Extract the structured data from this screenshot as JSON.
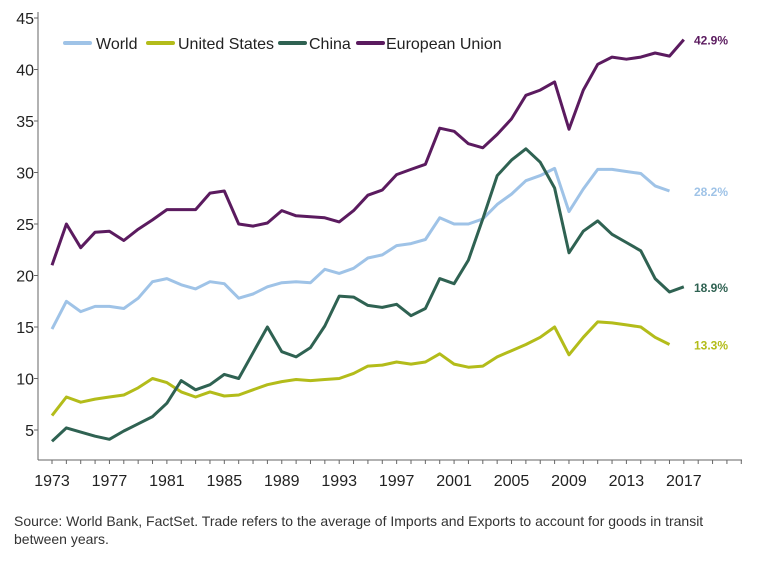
{
  "chart_data": {
    "type": "line",
    "title": "",
    "xlabel": "",
    "ylabel": "",
    "xlim": [
      1973,
      2021
    ],
    "ylim": [
      2,
      45
    ],
    "x_ticks": [
      1973,
      1977,
      1981,
      1985,
      1989,
      1993,
      1997,
      2001,
      2005,
      2009,
      2013,
      2017
    ],
    "y_ticks": [
      5,
      10,
      15,
      20,
      25,
      30,
      35,
      40,
      45
    ],
    "grid": false,
    "legend_placement": "top-left",
    "series": [
      {
        "name": "World",
        "color": "#9fc3e7",
        "end_label": "28.2%",
        "start_year": 1973,
        "values": [
          14.8,
          17.5,
          16.5,
          17,
          17,
          16.8,
          17.8,
          19.4,
          19.7,
          19.1,
          18.7,
          19.4,
          19.2,
          17.8,
          18.2,
          18.9,
          19.3,
          19.4,
          19.3,
          20.6,
          20.2,
          20.7,
          21.7,
          22,
          22.9,
          23.1,
          23.5,
          25.6,
          25,
          25,
          25.5,
          26.9,
          27.9,
          29.2,
          29.7,
          30.4,
          26.2,
          28.4,
          30.3,
          30.3,
          30.1,
          29.9,
          28.7,
          28.2
        ]
      },
      {
        "name": "United States",
        "color": "#b3bc1a",
        "end_label": "13.3%",
        "start_year": 1973,
        "values": [
          6.4,
          8.2,
          7.7,
          8,
          8.2,
          8.4,
          9.1,
          10,
          9.6,
          8.7,
          8.2,
          8.7,
          8.3,
          8.4,
          8.9,
          9.4,
          9.7,
          9.9,
          9.8,
          9.9,
          10,
          10.5,
          11.2,
          11.3,
          11.6,
          11.4,
          11.6,
          12.4,
          11.4,
          11.1,
          11.2,
          12.1,
          12.7,
          13.3,
          14,
          15,
          12.3,
          14,
          15.5,
          15.4,
          15.2,
          15,
          14,
          13.3
        ]
      },
      {
        "name": "China",
        "color": "#2f6252",
        "end_label": "18.9%",
        "start_year": 1973,
        "values": [
          3.9,
          5.2,
          4.8,
          4.4,
          4.1,
          4.9,
          5.6,
          6.3,
          7.6,
          9.8,
          8.9,
          9.4,
          10.4,
          10,
          12.5,
          15,
          12.6,
          12.1,
          13,
          15.1,
          18,
          17.9,
          17.1,
          16.9,
          17.2,
          16.1,
          16.8,
          19.7,
          19.2,
          21.5,
          25.5,
          29.7,
          31.2,
          32.3,
          31,
          28.5,
          22.2,
          24.3,
          25.3,
          24,
          23.2,
          22.4,
          19.7,
          18.4,
          18.9
        ]
      },
      {
        "name": "European Union",
        "color": "#5b1b5f",
        "end_label": "42.9%",
        "start_year": 1973,
        "values": [
          21,
          25,
          22.7,
          24.2,
          24.3,
          23.4,
          24.5,
          25.4,
          26.4,
          26.4,
          26.4,
          28,
          28.2,
          25,
          24.8,
          25.1,
          26.3,
          25.8,
          25.7,
          25.6,
          25.2,
          26.3,
          27.8,
          28.3,
          29.8,
          30.3,
          30.8,
          34.3,
          34,
          32.8,
          32.4,
          33.7,
          35.2,
          37.5,
          38,
          38.8,
          34.2,
          38,
          40.5,
          41.2,
          41,
          41.2,
          41.6,
          41.3,
          42.9
        ]
      }
    ],
    "source_note": "Source: World Bank, FactSet. Trade refers to the average of Imports and Exports to account for goods in transit between years."
  }
}
